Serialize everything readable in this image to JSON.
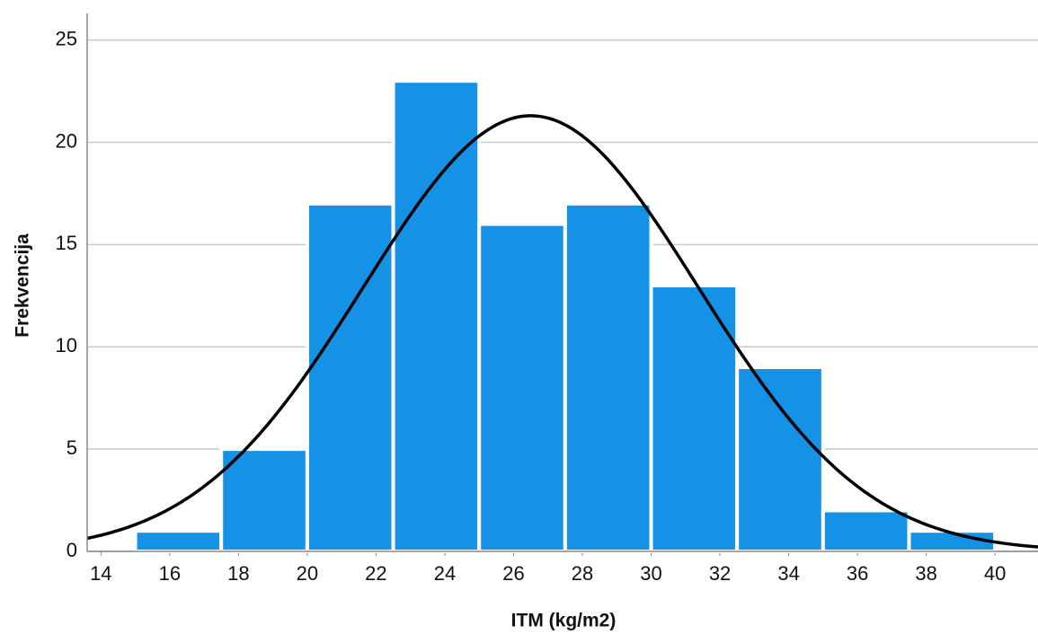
{
  "chart_data": {
    "type": "histogram",
    "xlabel": "ITM (kg/m2)",
    "ylabel": "Frekvencija",
    "bins": [
      15,
      17.5,
      20,
      22.5,
      25,
      27.5,
      30,
      32.5,
      35,
      37.5,
      40
    ],
    "counts": [
      1,
      5,
      17,
      23,
      16,
      17,
      13,
      9,
      2,
      1
    ],
    "color": "#1591e6",
    "xlim": [
      13.6,
      41.25
    ],
    "xticks": [
      14,
      16,
      18,
      20,
      22,
      24,
      26,
      28,
      30,
      32,
      34,
      36,
      38,
      40
    ],
    "ylim": [
      0,
      26.3
    ],
    "yticks": [
      0,
      5,
      10,
      15,
      20,
      25
    ],
    "grid": true,
    "normal_curve": {
      "mean": 26.5,
      "sd": 4.87,
      "color": "#000000"
    }
  }
}
